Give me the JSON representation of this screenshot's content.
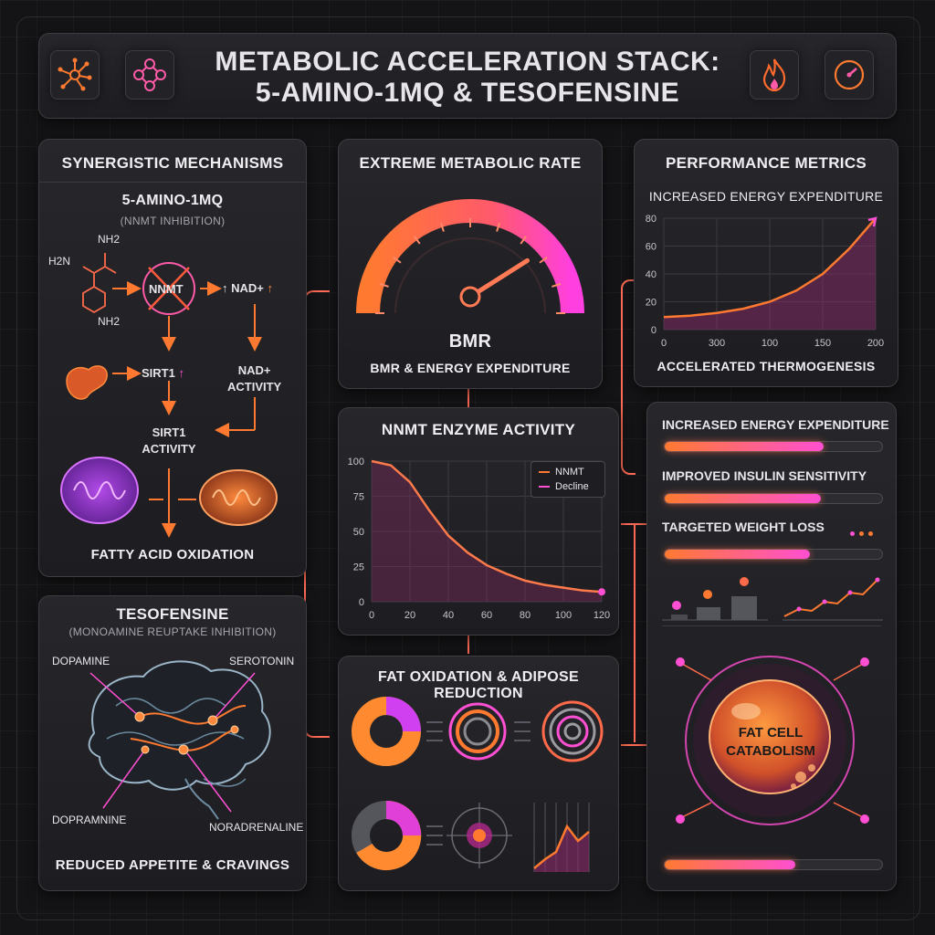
{
  "header": {
    "title_line1": "METABOLIC ACCELERATION STACK:",
    "title_line2": "5-AMINO-1MQ & TESOFENSINE",
    "icons": [
      "network-icon",
      "molecule-icon",
      "flame-icon",
      "speedometer-icon"
    ]
  },
  "mechanisms": {
    "title": "SYNERGISTIC MECHANISMS",
    "compound": "5-AMINO-1MQ",
    "subtitle": "(NNMT INHIBITION)",
    "chem_nh2_top": "NH2",
    "chem_h2n": "H2N",
    "chem_nh2_bottom": "NH2",
    "nnmt": "NNMT",
    "nad_up": "NAD+",
    "sirt1_up": "SIRT1",
    "nad_activity_1": "NAD+",
    "nad_activity_2": "ACTIVITY",
    "sirt1_activity_1": "SIRT1",
    "sirt1_activity_2": "ACTIVITY",
    "fatty_acid": "FATTY ACID OXIDATION"
  },
  "tesofensine": {
    "title": "TESOFENSINE",
    "subtitle": "(MONOAMINE REUPTAKE INHIBITION)",
    "dopamine": "DOPAMINE",
    "serotonin": "SEROTONIN",
    "dopramnine": "DOPRAMNINE",
    "noradrenaline": "NORADRENALINE",
    "footer": "REDUCED APPETITE & CRAVINGS"
  },
  "metabolic_rate": {
    "title": "EXTREME METABOLIC RATE",
    "gauge_label": "BMR",
    "caption": "BMR & ENERGY EXPENDITURE",
    "gauge_level": 0.82
  },
  "nnmt_chart": {
    "title": "NNMT ENZYME ACTIVITY",
    "legend": [
      "NNMT",
      "Decline"
    ]
  },
  "fat_oxidation": {
    "title": "FAT OXIDATION & ADIPOSE REDUCTION"
  },
  "performance": {
    "title": "PERFORMANCE METRICS",
    "chart_title": "INCREASED ENERGY EXPENDITURE",
    "caption": "ACCELERATED THERMOGENESIS"
  },
  "metrics": {
    "items": [
      {
        "label": "INCREASED ENERGY EXPENDITURE",
        "level": 0.73
      },
      {
        "label": "IMPROVED INSULIN SENSITIVITY",
        "level": 0.72
      },
      {
        "label": "TARGETED WEIGHT LOSS",
        "level": 0.67
      }
    ],
    "fat_cell_line1": "FAT CELL",
    "fat_cell_line2": "CATABOLISM",
    "bottom_level": 0.6
  },
  "colors": {
    "orange": "#ff7a30",
    "magenta": "#ff4fd2",
    "background": "#141416"
  },
  "chart_data": [
    {
      "type": "line",
      "title": "NNMT ENZYME ACTIVITY",
      "x_ticks": [
        0,
        20,
        40,
        60,
        80,
        100,
        120
      ],
      "y_ticks": [
        0,
        25,
        50,
        75,
        100
      ],
      "xlim": [
        0,
        120
      ],
      "ylim": [
        0,
        100
      ],
      "grid": true,
      "legend_position": "top-right",
      "series": [
        {
          "name": "NNMT",
          "x": [
            0,
            10,
            20,
            30,
            40,
            50,
            60,
            70,
            80,
            90,
            100,
            110,
            120
          ],
          "y": [
            100,
            97,
            85,
            65,
            47,
            35,
            26,
            20,
            15,
            12,
            10,
            8,
            7
          ]
        }
      ]
    },
    {
      "type": "area",
      "title": "INCREASED ENERGY EXPENDITURE",
      "x_ticks": [
        "0",
        "300",
        "100",
        "150",
        "200"
      ],
      "y_ticks": [
        0,
        20,
        40,
        60,
        80
      ],
      "ylim": [
        0,
        80
      ],
      "grid": true,
      "series": [
        {
          "x": [
            0,
            25,
            50,
            75,
            100,
            125,
            150,
            175,
            200
          ],
          "y": [
            9,
            10,
            12,
            15,
            20,
            28,
            40,
            58,
            80
          ]
        }
      ]
    }
  ]
}
